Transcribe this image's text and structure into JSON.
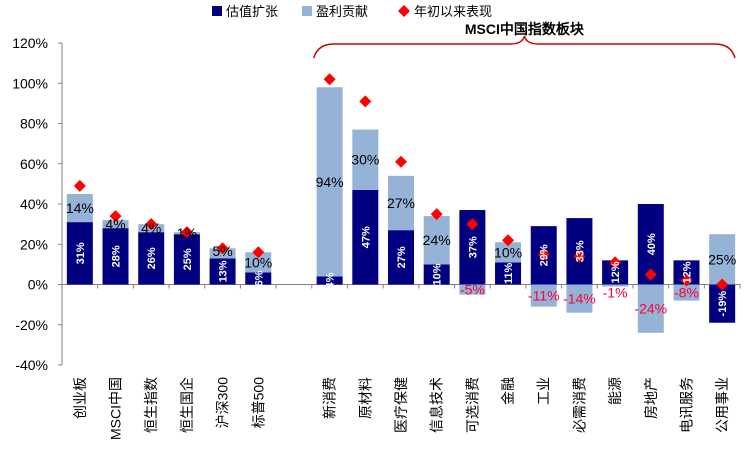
{
  "chart_data": {
    "type": "bar",
    "stacked": true,
    "ylim": [
      -40,
      120
    ],
    "yticks": [
      -40,
      -20,
      0,
      20,
      40,
      60,
      80,
      100,
      120
    ],
    "ytick_format": "%",
    "grid": false,
    "legend_placement": "top",
    "group_label": "MSCI中国指数板块",
    "categories": [
      "创业板",
      "MSCI中国",
      "恒生指数",
      "恒生国企",
      "沪深300",
      "标普500",
      "",
      "新消费",
      "原材料",
      "医疗保健",
      "信息技术",
      "可选消费",
      "金融",
      "工业",
      "必需消费",
      "能源",
      "房地产",
      "电讯服务",
      "公用事业"
    ],
    "series": [
      {
        "name": "估值扩张",
        "kind": "bar",
        "color": "#000080",
        "values": [
          31,
          28,
          26,
          25,
          13,
          6,
          null,
          4,
          47,
          27,
          10,
          37,
          11,
          29,
          33,
          12,
          40,
          12,
          -19
        ]
      },
      {
        "name": "盈利贡献",
        "kind": "bar",
        "color": "#95b3d7",
        "values": [
          14,
          4,
          4,
          1,
          5,
          10,
          null,
          94,
          30,
          27,
          24,
          -5,
          10,
          -11,
          -14,
          -1,
          -24,
          -8,
          25
        ]
      },
      {
        "name": "年初以来表现",
        "kind": "marker",
        "color": "#ff0000",
        "values": [
          49,
          34,
          30,
          26,
          18,
          16,
          null,
          102,
          91,
          61,
          35,
          30,
          22,
          15,
          14,
          11,
          5,
          2,
          0
        ]
      }
    ]
  }
}
